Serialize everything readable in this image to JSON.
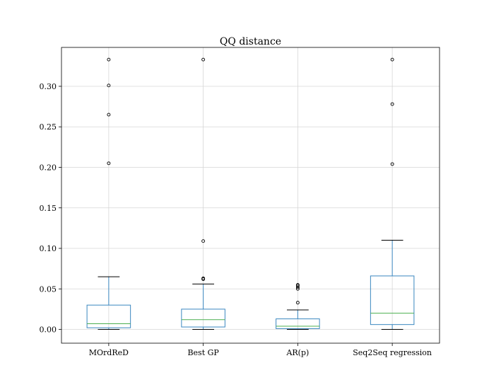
{
  "chart_data": {
    "type": "box",
    "title": "QQ distance",
    "xlabel": "",
    "ylabel": "",
    "ylim": [
      -0.017,
      0.348
    ],
    "yticks": [
      0.0,
      0.05,
      0.1,
      0.15,
      0.2,
      0.25,
      0.3
    ],
    "ytick_labels": [
      "0.00",
      "0.05",
      "0.10",
      "0.15",
      "0.20",
      "0.25",
      "0.30"
    ],
    "grid": true,
    "colors": {
      "box": "#3a87c0",
      "median": "#4caf50",
      "whisker": "#000000",
      "outlier": "#000000"
    },
    "categories": [
      "MOrdReD",
      "Best GP",
      "AR(p)",
      "Seq2Seq regression"
    ],
    "boxes": [
      {
        "name": "MOrdReD",
        "whislo": 0.0,
        "q1": 0.002,
        "median": 0.007,
        "q3": 0.03,
        "whishi": 0.065,
        "fliers": [
          0.205,
          0.265,
          0.301,
          0.333
        ]
      },
      {
        "name": "Best GP",
        "whislo": 0.0,
        "q1": 0.003,
        "median": 0.012,
        "q3": 0.025,
        "whishi": 0.056,
        "fliers": [
          0.062,
          0.063,
          0.109,
          0.333
        ]
      },
      {
        "name": "AR(p)",
        "whislo": 0.0,
        "q1": 0.001,
        "median": 0.004,
        "q3": 0.013,
        "whishi": 0.024,
        "fliers": [
          0.033,
          0.05,
          0.052,
          0.054,
          0.055
        ]
      },
      {
        "name": "Seq2Seq regression",
        "whislo": 0.0,
        "q1": 0.006,
        "median": 0.02,
        "q3": 0.066,
        "whishi": 0.11,
        "fliers": [
          0.204,
          0.278,
          0.333
        ]
      }
    ]
  }
}
